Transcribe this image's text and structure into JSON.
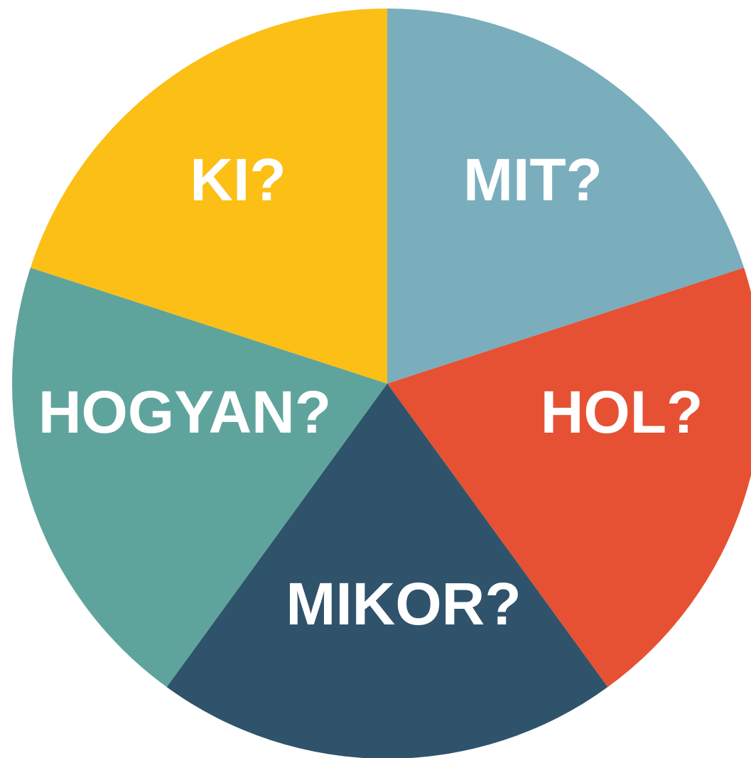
{
  "segments": [
    {
      "label": "MIT?",
      "color": "#7aaebd"
    },
    {
      "label": "HOL?",
      "color": "#e65133"
    },
    {
      "label": "MIKOR?",
      "color": "#2f536b"
    },
    {
      "label": "HOGYAN?",
      "color": "#5fa49c"
    },
    {
      "label": "KI?",
      "color": "#fbbf16"
    }
  ]
}
